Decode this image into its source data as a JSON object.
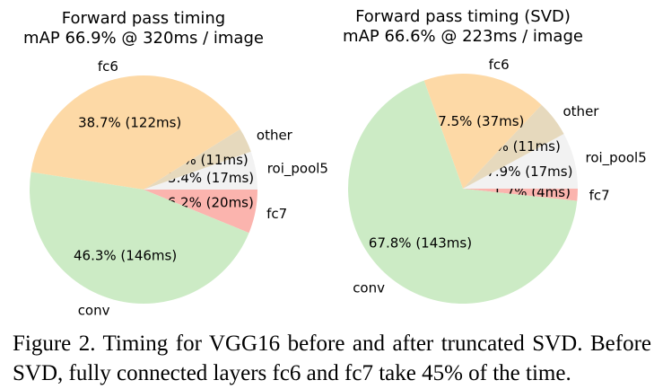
{
  "chart_data": [
    {
      "type": "pie",
      "title": [
        "Forward pass timing",
        "mAP 66.9% @ 320ms / image"
      ],
      "slices": [
        {
          "label": "fc6",
          "pct": 38.7,
          "ms": 122,
          "text": "38.7% (122ms)",
          "color": "#fdd9a6"
        },
        {
          "label": "other",
          "pct": 3.5,
          "ms": 11,
          "text": "3.5% (11ms)",
          "color": "#e6d9bd"
        },
        {
          "label": "roi_pool5",
          "pct": 5.4,
          "ms": 17,
          "text": "5.4% (17ms)",
          "color": "#f2f2f2"
        },
        {
          "label": "fc7",
          "pct": 6.2,
          "ms": 20,
          "text": "6.2% (20ms)",
          "color": "#fbb4ae"
        },
        {
          "label": "conv",
          "pct": 46.3,
          "ms": 146,
          "text": "46.3% (146ms)",
          "color": "#ccebc5"
        }
      ]
    },
    {
      "type": "pie",
      "title": [
        "Forward pass timing (SVD)",
        "mAP 66.6% @ 223ms / image"
      ],
      "slices": [
        {
          "label": "fc6",
          "pct": 17.5,
          "ms": 37,
          "text": "17.5% (37ms)",
          "color": "#fdd9a6"
        },
        {
          "label": "other",
          "pct": 5.1,
          "ms": 11,
          "text": "5.1% (11ms)",
          "color": "#e6d9bd"
        },
        {
          "label": "roi_pool5",
          "pct": 7.9,
          "ms": 17,
          "text": "7.9% (17ms)",
          "color": "#f2f2f2"
        },
        {
          "label": "fc7",
          "pct": 1.7,
          "ms": 4,
          "text": "1.7% (4ms)",
          "color": "#fbb4ae"
        },
        {
          "label": "conv",
          "pct": 67.8,
          "ms": 143,
          "text": "67.8% (143ms)",
          "color": "#ccebc5"
        }
      ]
    }
  ],
  "caption": "Figure 2. Timing for VGG16 before and after truncated SVD. Before SVD, fully connected layers fc6 and fc7 take 45% of the time."
}
